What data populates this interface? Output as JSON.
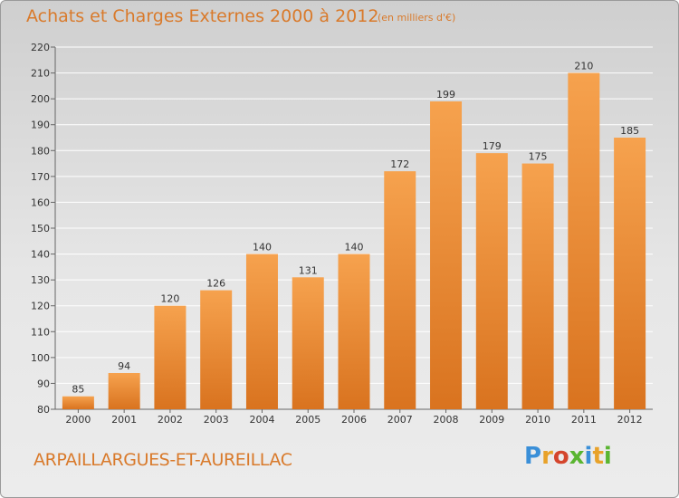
{
  "header": {
    "title": "Achats et Charges Externes 2000 à 2012",
    "subtitle": "(en milliers d'€)"
  },
  "footer": {
    "commune": "ARPAILLARGUES-ET-AUREILLAC",
    "brand_letters": [
      "P",
      "r",
      "o",
      "x",
      "i",
      "t",
      "i"
    ],
    "brand_colors": [
      "#3a8fd8",
      "#e8a22a",
      "#d4452c",
      "#5ab531",
      "#3a8fd8",
      "#e8a22a",
      "#5ab531"
    ]
  },
  "colors": {
    "bar_light": "#f6a24e",
    "bar_dark": "#d9731f",
    "accent": "#d97a2b",
    "grid": "#ffffff"
  },
  "chart_data": {
    "type": "bar",
    "title": "Achats et Charges Externes 2000 à 2012",
    "subtitle": "(en milliers d'€)",
    "xlabel": "",
    "ylabel": "",
    "categories": [
      "2000",
      "2001",
      "2002",
      "2003",
      "2004",
      "2005",
      "2006",
      "2007",
      "2008",
      "2009",
      "2010",
      "2011",
      "2012"
    ],
    "values": [
      85,
      94,
      120,
      126,
      140,
      131,
      140,
      172,
      199,
      179,
      175,
      210,
      185
    ],
    "ylim": [
      80,
      220
    ],
    "yticks": [
      80,
      90,
      100,
      110,
      120,
      130,
      140,
      150,
      160,
      170,
      180,
      190,
      200,
      210,
      220
    ],
    "grid": true,
    "data_labels": true
  }
}
